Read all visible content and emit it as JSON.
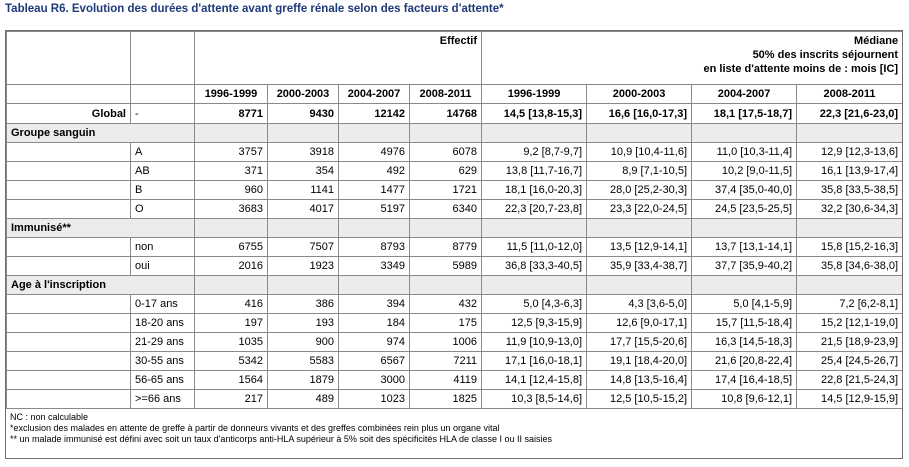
{
  "title": "Tableau R6. Evolution des durées d'attente avant greffe rénale selon des facteurs d'attente*",
  "header": {
    "effectif_label": "Effectif",
    "mediane_lines": [
      "Médiane",
      "50% des inscrits séjournent",
      "en liste d'attente moins de : mois [IC]"
    ],
    "periods": [
      "1996-1999",
      "2000-2003",
      "2004-2007",
      "2008-2011"
    ]
  },
  "global": {
    "label": "Global",
    "sub": "-",
    "effectif": [
      "8771",
      "9430",
      "12142",
      "14768"
    ],
    "mediane": [
      "14,5 [13,8-15,3]",
      "16,6 [16,0-17,3]",
      "18,1 [17,5-18,7]",
      "22,3 [21,6-23,0]"
    ]
  },
  "sections": [
    {
      "label": "Groupe sanguin",
      "rows": [
        {
          "label": "A",
          "effectif": [
            "3757",
            "3918",
            "4976",
            "6078"
          ],
          "mediane": [
            "9,2 [8,7-9,7]",
            "10,9 [10,4-11,6]",
            "11,0 [10,3-11,4]",
            "12,9 [12,3-13,6]"
          ]
        },
        {
          "label": "AB",
          "effectif": [
            "371",
            "354",
            "492",
            "629"
          ],
          "mediane": [
            "13,8 [11,7-16,7]",
            "8,9 [7,1-10,5]",
            "10,2 [9,0-11,5]",
            "16,1 [13,9-17,4]"
          ]
        },
        {
          "label": "B",
          "effectif": [
            "960",
            "1141",
            "1477",
            "1721"
          ],
          "mediane": [
            "18,1 [16,0-20,3]",
            "28,0 [25,2-30,3]",
            "37,4 [35,0-40,0]",
            "35,8 [33,5-38,5]"
          ]
        },
        {
          "label": "O",
          "effectif": [
            "3683",
            "4017",
            "5197",
            "6340"
          ],
          "mediane": [
            "22,3 [20,7-23,8]",
            "23,3 [22,0-24,5]",
            "24,5 [23,5-25,5]",
            "32,2 [30,6-34,3]"
          ]
        }
      ]
    },
    {
      "label": "Immunisé**",
      "rows": [
        {
          "label": "non",
          "effectif": [
            "6755",
            "7507",
            "8793",
            "8779"
          ],
          "mediane": [
            "11,5 [11,0-12,0]",
            "13,5 [12,9-14,1]",
            "13,7 [13,1-14,1]",
            "15,8 [15,2-16,3]"
          ]
        },
        {
          "label": "oui",
          "effectif": [
            "2016",
            "1923",
            "3349",
            "5989"
          ],
          "mediane": [
            "36,8 [33,3-40,5]",
            "35,9 [33,4-38,7]",
            "37,7 [35,9-40,2]",
            "35,8 [34,6-38,0]"
          ]
        }
      ]
    },
    {
      "label": "Age à l'inscription",
      "rows": [
        {
          "label": "0-17 ans",
          "effectif": [
            "416",
            "386",
            "394",
            "432"
          ],
          "mediane": [
            "5,0 [4,3-6,3]",
            "4,3 [3,6-5,0]",
            "5,0 [4,1-5,9]",
            "7,2 [6,2-8,1]"
          ]
        },
        {
          "label": "18-20 ans",
          "effectif": [
            "197",
            "193",
            "184",
            "175"
          ],
          "mediane": [
            "12,5 [9,3-15,9]",
            "12,6 [9,0-17,1]",
            "15,7 [11,5-18,4]",
            "15,2 [12,1-19,0]"
          ]
        },
        {
          "label": "21-29 ans",
          "effectif": [
            "1035",
            "900",
            "974",
            "1006"
          ],
          "mediane": [
            "11,9 [10,9-13,0]",
            "17,7 [15,5-20,6]",
            "16,3 [14,5-18,3]",
            "21,5 [18,9-23,9]"
          ]
        },
        {
          "label": "30-55 ans",
          "effectif": [
            "5342",
            "5583",
            "6567",
            "7211"
          ],
          "mediane": [
            "17,1 [16,0-18,1]",
            "19,1 [18,4-20,0]",
            "21,6 [20,8-22,4]",
            "25,4 [24,5-26,7]"
          ]
        },
        {
          "label": "56-65 ans",
          "effectif": [
            "1564",
            "1879",
            "3000",
            "4119"
          ],
          "mediane": [
            "14,1 [12,4-15,8]",
            "14,8 [13,5-16,4]",
            "17,4 [16,4-18,5]",
            "22,8 [21,5-24,3]"
          ]
        },
        {
          "label": ">=66 ans",
          "effectif": [
            "217",
            "489",
            "1023",
            "1825"
          ],
          "mediane": [
            "10,3 [8,5-14,6]",
            "12,5 [10,5-15,2]",
            "10,8 [9,6-12,1]",
            "14,5 [12,9-15,9]"
          ]
        }
      ]
    }
  ],
  "notes": [
    "NC : non calculable",
    "*exclusion des malades en attente de greffe à partir de donneurs vivants et des greffes combinées rein plus un organe vital",
    "** un malade immunisé est défini avec soit un taux d'anticorps anti-HLA supérieur à 5% soit des spécificités HLA de classe I ou II saisies"
  ],
  "colors": {
    "title": "#1f3a7a",
    "section_bg": "#ececec",
    "border": "#8a8a8a"
  }
}
